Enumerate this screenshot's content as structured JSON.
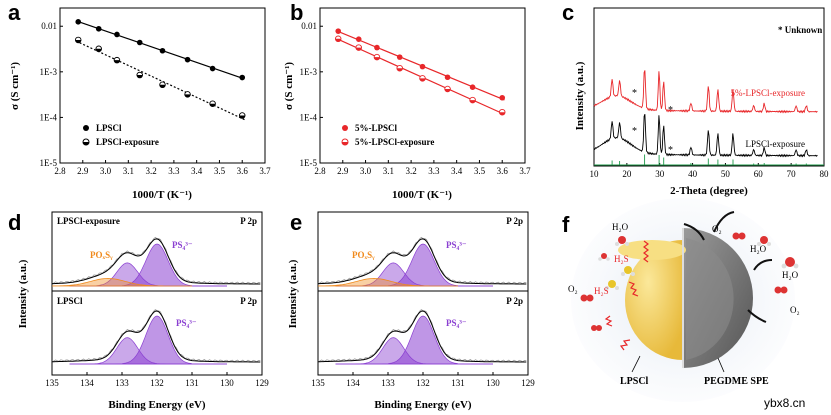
{
  "chart_data": [
    {
      "panel": "a",
      "type": "scatter",
      "xlabel": "1000/T (K⁻¹)",
      "ylabel": "σ (S cm⁻¹)",
      "xlim": [
        2.8,
        3.7
      ],
      "ylim_log10": [
        -5,
        -1.6
      ],
      "xticks": [
        "2.8",
        "2.9",
        "3.0",
        "3.1",
        "3.2",
        "3.3",
        "3.4",
        "3.5",
        "3.6",
        "3.7"
      ],
      "yticks": [
        "1E-5",
        "1E-4",
        "1E-3",
        "0.01"
      ],
      "series": [
        {
          "name": "LPSCl",
          "marker": "filled-circle",
          "fit": "solid",
          "x": [
            2.88,
            2.97,
            3.05,
            3.15,
            3.25,
            3.36,
            3.47,
            3.6
          ],
          "y": [
            0.0125,
            0.0088,
            0.0066,
            0.0044,
            0.0029,
            0.00185,
            0.00118,
            0.00075
          ]
        },
        {
          "name": "LPSCl-exposure",
          "marker": "half-filled-circle",
          "fit": "dotted",
          "x": [
            2.88,
            2.97,
            3.05,
            3.15,
            3.25,
            3.36,
            3.47,
            3.6
          ],
          "y": [
            0.005,
            0.0032,
            0.0018,
            0.00085,
            0.00052,
            0.00032,
            0.0002,
            0.00011
          ]
        }
      ]
    },
    {
      "panel": "b",
      "type": "scatter",
      "xlabel": "1000/T (K⁻¹)",
      "ylabel": "σ (S cm⁻¹)",
      "xlim": [
        2.8,
        3.7
      ],
      "ylim_log10": [
        -5,
        -1.6
      ],
      "xticks": [
        "2.8",
        "2.9",
        "3.0",
        "3.1",
        "3.2",
        "3.3",
        "3.4",
        "3.5",
        "3.6",
        "3.7"
      ],
      "yticks": [
        "1E-5",
        "1E-4",
        "1E-3",
        "0.01"
      ],
      "series": [
        {
          "name": "5%-LPSCl",
          "marker": "filled-circle",
          "color": "#e8272a",
          "fit": "solid",
          "x": [
            2.88,
            2.97,
            3.05,
            3.15,
            3.25,
            3.36,
            3.47,
            3.6
          ],
          "y": [
            0.0078,
            0.0052,
            0.0034,
            0.0021,
            0.0013,
            0.00076,
            0.00046,
            0.00027
          ]
        },
        {
          "name": "5%-LPSCl-exposure",
          "marker": "half-filled-circle",
          "color": "#e8272a",
          "fit": "solid",
          "x": [
            2.88,
            2.97,
            3.05,
            3.15,
            3.25,
            3.36,
            3.47,
            3.6
          ],
          "y": [
            0.0053,
            0.0034,
            0.0021,
            0.0012,
            0.00072,
            0.00042,
            0.00024,
            0.00013
          ]
        }
      ]
    },
    {
      "panel": "c",
      "type": "line",
      "xlabel": "2-Theta (degree)",
      "ylabel": "Intensity (a.u.)",
      "xlim": [
        10,
        80
      ],
      "xticks": [
        "10",
        "20",
        "30",
        "40",
        "50",
        "60",
        "70",
        "80"
      ],
      "legend_note": "* Unknown",
      "series": [
        {
          "name": "5%-LPSCl-exposure",
          "color": "#e8272a"
        },
        {
          "name": "LPSCl-exposure",
          "color": "#000000"
        }
      ],
      "reference_color": "#1f9a4a",
      "annotations": [
        "*",
        "*",
        "*",
        "*"
      ]
    },
    {
      "panel": "d",
      "type": "area",
      "xlabel": "Binding Energy (eV)",
      "ylabel": "Intensity (a.u.)",
      "xlim": [
        135,
        129
      ],
      "xticks": [
        "135",
        "134",
        "133",
        "132",
        "131",
        "130",
        "129"
      ],
      "subpanels": [
        {
          "sample": "LPSCl-exposure",
          "edge": "P 2p",
          "peaks": [
            "POₓSᵧ",
            "PS₄³⁻"
          ]
        },
        {
          "sample": "LPSCl",
          "edge": "P 2p",
          "peaks": [
            "PS₄³⁻"
          ]
        }
      ]
    },
    {
      "panel": "e",
      "type": "area",
      "xlabel": "Binding Energy (eV)",
      "ylabel": "Intensity (a.u.)",
      "xlim": [
        135,
        129
      ],
      "xticks": [
        "135",
        "134",
        "133",
        "132",
        "131",
        "130",
        "129"
      ],
      "subpanels": [
        {
          "sample": "",
          "edge": "P 2p",
          "peaks": [
            "POₓSᵧ",
            "PS₄³⁻"
          ]
        },
        {
          "sample": "",
          "edge": "P 2p",
          "peaks": [
            "PS₄³⁻"
          ]
        }
      ]
    }
  ],
  "panels": {
    "a": "a",
    "b": "b",
    "c": "c",
    "d": "d",
    "e": "e",
    "f": "f"
  },
  "text": {
    "a_xlabel": "1000/T (K⁻¹)",
    "ylabel_sigma": "σ (S cm⁻¹)",
    "a_legend1": "LPSCl",
    "a_legend2": "LPSCl-exposure",
    "b_legend1": "5%-LPSCl",
    "b_legend2": "5%-LPSCl-exposure",
    "c_unknown": "* Unknown",
    "c_label_red": "5%-LPSCl-exposure",
    "c_label_black": "LPSCl-exposure",
    "c_xlabel": "2-Theta (degree)",
    "intensity": "Intensity (a.u.)",
    "be_xlabel": "Binding Energy (eV)",
    "d_top_sample": "LPSCl-exposure",
    "d_bottom_sample": "LPSCl",
    "p2p": "P 2p",
    "poxsy": "POₓSᵧ",
    "ps4": "PS₄³⁻",
    "star": "*"
  },
  "schematic_f": {
    "molecules": [
      "H₂O",
      "O₂",
      "H₂O",
      "H₂O",
      "O₂",
      "H₂S",
      "H₂S",
      "O₂"
    ],
    "core_label": "LPSCl",
    "shell_label": "PEGDME SPE"
  },
  "watermark": "ybx8.cn",
  "colors": {
    "red": "#e8272a",
    "purple": "#8a3fd1",
    "orange": "#f08a1c",
    "green": "#1f9a4a",
    "sphere": "#f2cf5a",
    "shell": "#777777"
  }
}
